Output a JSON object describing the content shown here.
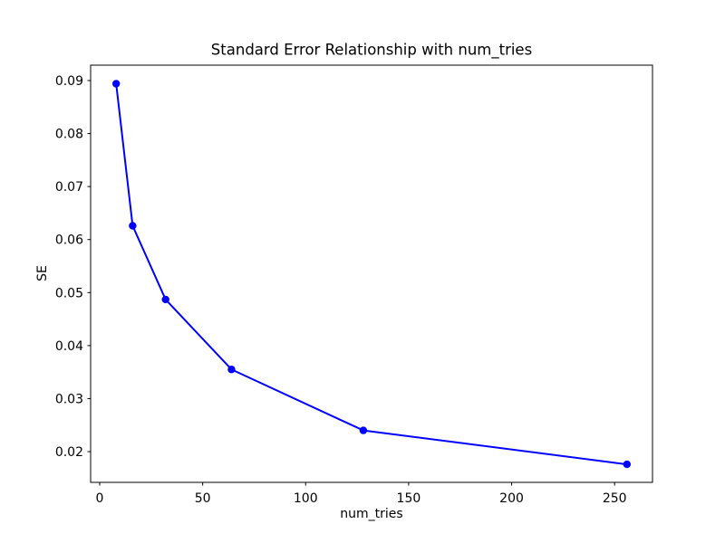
{
  "chart_data": {
    "type": "line",
    "title": "Standard Error Relationship with num_tries",
    "xlabel": "num_tries",
    "ylabel": "SE",
    "x": [
      8,
      16,
      32,
      64,
      128,
      256
    ],
    "y": [
      0.0894,
      0.0626,
      0.0487,
      0.0355,
      0.024,
      0.0176
    ],
    "xlim": [
      -4.4,
      268.4
    ],
    "ylim": [
      0.0142,
      0.0929
    ],
    "x_tick_values": [
      0,
      50,
      100,
      150,
      200,
      250
    ],
    "x_tick_labels": [
      "0",
      "50",
      "100",
      "150",
      "200",
      "250"
    ],
    "y_tick_values": [
      0.02,
      0.03,
      0.04,
      0.05,
      0.06,
      0.07,
      0.08,
      0.09
    ],
    "y_tick_labels": [
      "0.02",
      "0.03",
      "0.04",
      "0.05",
      "0.06",
      "0.07",
      "0.08",
      "0.09"
    ],
    "line_color": "#0000ff",
    "marker_color": "#0000ff",
    "marker": "circle",
    "grid": false,
    "legend_position": "none",
    "axis_color": "#000000",
    "background_color": "#ffffff"
  }
}
